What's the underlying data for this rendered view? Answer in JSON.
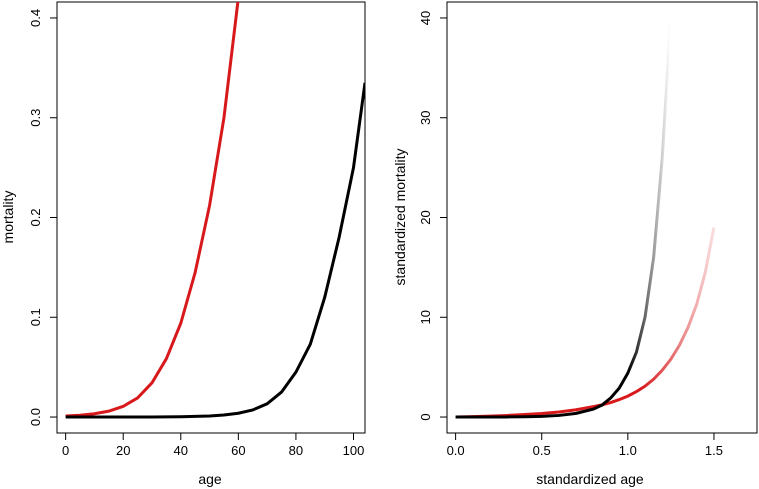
{
  "chart_data": [
    {
      "type": "line",
      "xlabel": "age",
      "ylabel": "mortality",
      "xlim": [
        -3,
        104
      ],
      "ylim": [
        -0.016,
        0.416
      ],
      "x_ticks": [
        0,
        20,
        40,
        60,
        80,
        100
      ],
      "x_tick_labels": [
        "0",
        "20",
        "40",
        "60",
        "80",
        "100"
      ],
      "y_ticks": [
        0.0,
        0.1,
        0.2,
        0.3,
        0.4
      ],
      "y_tick_labels": [
        "0.0",
        "0.1",
        "0.2",
        "0.3",
        "0.4"
      ],
      "series": [
        {
          "color": "#d7191c",
          "x": [
            0,
            5,
            10,
            15,
            20,
            25,
            30,
            35,
            40,
            45,
            50,
            55,
            60
          ],
          "y": [
            0.001,
            0.0018,
            0.0033,
            0.0059,
            0.0107,
            0.0192,
            0.0343,
            0.0585,
            0.094,
            0.145,
            0.212,
            0.3,
            0.42
          ]
        },
        {
          "color": "#000000",
          "x": [
            0,
            10,
            20,
            30,
            40,
            50,
            55,
            60,
            65,
            70,
            75,
            80,
            85,
            90,
            95,
            100,
            104
          ],
          "y": [
            0.0,
            0.0,
            0.0,
            0.0001,
            0.0003,
            0.0011,
            0.002,
            0.0038,
            0.0071,
            0.0133,
            0.025,
            0.045,
            0.073,
            0.12,
            0.18,
            0.25,
            0.335
          ]
        }
      ],
      "grid": false,
      "legend": "none"
    },
    {
      "type": "line",
      "xlabel": "standardized age",
      "ylabel": "standardized mortality",
      "xlim": [
        -0.05,
        1.75
      ],
      "ylim": [
        -1.6,
        41.6
      ],
      "x_ticks": [
        0.0,
        0.5,
        1.0,
        1.5
      ],
      "x_tick_labels": [
        "0.0",
        "0.5",
        "1.0",
        "1.5"
      ],
      "y_ticks": [
        0,
        10,
        20,
        30,
        40
      ],
      "y_tick_labels": [
        "0",
        "10",
        "20",
        "30",
        "40"
      ],
      "series": [
        {
          "color": "#000000",
          "x": [
            0.0,
            0.1,
            0.2,
            0.3,
            0.4,
            0.5,
            0.6,
            0.7,
            0.8,
            0.85,
            0.9,
            0.95,
            1.0,
            1.05,
            1.1,
            1.15,
            1.2,
            1.25
          ],
          "y": [
            0.0,
            0.0,
            0.0,
            0.01,
            0.03,
            0.07,
            0.16,
            0.37,
            0.8,
            1.2,
            1.9,
            2.9,
            4.4,
            6.5,
            10.0,
            16.0,
            26.0,
            40.0
          ],
          "fade_start_x": 1.0
        },
        {
          "color": "#d7191c",
          "x": [
            0.0,
            0.1,
            0.2,
            0.3,
            0.4,
            0.5,
            0.6,
            0.7,
            0.8,
            0.85,
            0.9,
            0.95,
            1.0,
            1.05,
            1.1,
            1.15,
            1.2,
            1.25,
            1.3,
            1.35,
            1.4,
            1.45,
            1.5
          ],
          "y": [
            0.0,
            0.04,
            0.09,
            0.16,
            0.25,
            0.36,
            0.51,
            0.73,
            1.05,
            1.22,
            1.45,
            1.75,
            2.1,
            2.55,
            3.1,
            3.8,
            4.7,
            5.8,
            7.2,
            9.0,
            11.3,
            14.5,
            19.0
          ],
          "fade_start_x": 1.1
        }
      ],
      "grid": false,
      "legend": "none"
    }
  ]
}
